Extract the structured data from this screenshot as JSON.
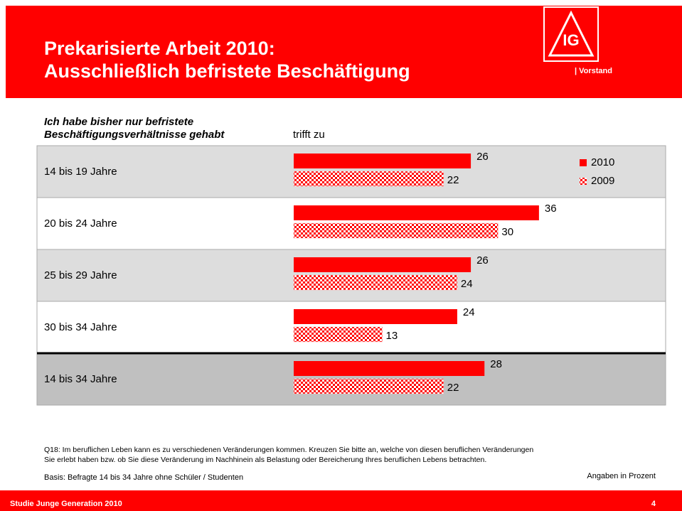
{
  "title": [
    "Prekarisierte Arbeit 2010:",
    "Ausschließlich befristete Beschäftigung"
  ],
  "brand_label": "| Vorstand",
  "chart_data": {
    "type": "bar",
    "orientation": "horizontal",
    "subtitle": [
      "Ich habe bisher nur befristete",
      "Beschäftigungsverhältnisse gehabt"
    ],
    "column_label": "trifft zu",
    "categories": [
      "14 bis 19 Jahre",
      "20 bis 24 Jahre",
      "25 bis 29 Jahre",
      "30 bis 34 Jahre",
      "14 bis 34 Jahre"
    ],
    "series": [
      {
        "name": "2010",
        "color": "#ff0000",
        "values": [
          26,
          36,
          26,
          24,
          28
        ]
      },
      {
        "name": "2009",
        "color": "#ff0000",
        "pattern": "checkered",
        "values": [
          22,
          30,
          24,
          13,
          22
        ]
      }
    ]
  },
  "question": [
    "Q18: Im beruflichen Leben kann es zu verschiedenen Veränderungen kommen. Kreuzen Sie bitte an, welche von diesen beruflichen Veränderungen",
    "Sie erlebt haben bzw. ob Sie diese Veränderung im Nachhinein als Belastung oder Bereicherung Ihres beruflichen Lebens betrachten."
  ],
  "basis": "Basis: Befragte 14 bis 34 Jahre ohne Schüler / Studenten",
  "unit_note": "Angaben in Prozent",
  "footer": {
    "text": "Studie Junge Generation 2010",
    "page": "4"
  }
}
